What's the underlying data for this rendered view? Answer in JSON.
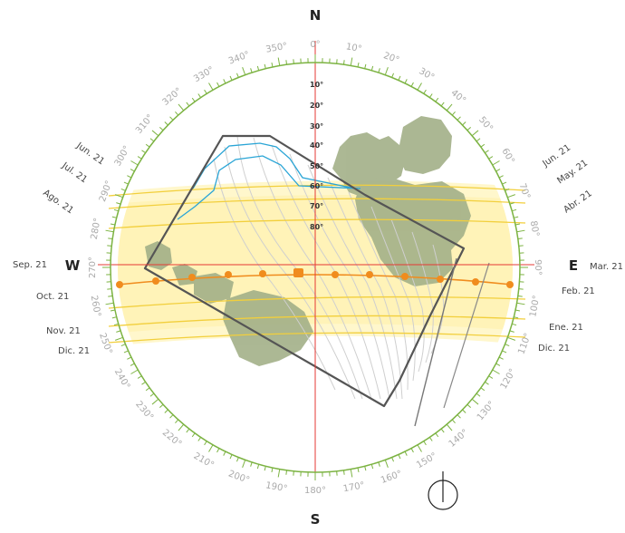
{
  "diagram": {
    "cardinals": {
      "north": "N",
      "south": "S",
      "east": "E",
      "west": "W"
    },
    "azimuth_labels": [
      "0°",
      "10°",
      "20°",
      "30°",
      "40°",
      "50°",
      "60°",
      "70°",
      "80°",
      "90°",
      "100°",
      "110°",
      "120°",
      "130°",
      "140°",
      "150°",
      "160°",
      "170°",
      "180°",
      "190°",
      "200°",
      "210°",
      "220°",
      "230°",
      "240°",
      "250°",
      "260°",
      "270°",
      "280°",
      "290°",
      "300°",
      "310°",
      "320°",
      "330°",
      "340°",
      "350°"
    ],
    "altitude_labels": [
      "10°",
      "20°",
      "30°",
      "40°",
      "50°",
      "60°",
      "70°",
      "80°"
    ],
    "months_east": [
      "Jun. 21",
      "May. 21",
      "Abr. 21",
      "Mar. 21",
      "Feb. 21",
      "Ene. 21",
      "Dic. 21"
    ],
    "months_west": [
      "Jun. 21",
      "Jul. 21",
      "Ago. 21",
      "Sep. 21",
      "Oct. 21",
      "Nov. 21",
      "Dic. 21"
    ],
    "colors": {
      "ring": "#7cb342",
      "band": "#fff6c8",
      "sun_path": "#f5d24a",
      "equinox_path": "#f08c1e",
      "axis": "#e53935",
      "shadow_lines": "#c9c9c9",
      "obstruction_outline": "#555555",
      "obstruction_fill": "#ffffff",
      "trees": "#a9b58e",
      "cyan": "#29a8d6"
    },
    "compass_symbol": "north-compass-icon"
  }
}
